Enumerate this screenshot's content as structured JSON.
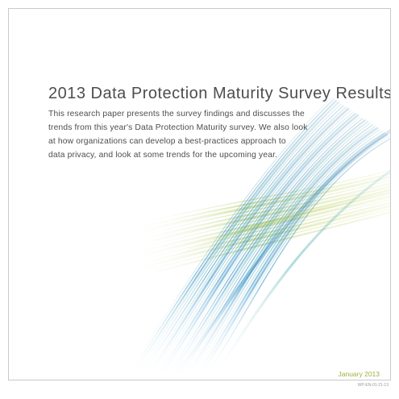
{
  "document": {
    "title": "2013 Data Protection Maturity Survey Results",
    "intro_lines": [
      "This research paper presents the survey findings and discusses the",
      "trends from this year's Data Protection Maturity survey. We also look",
      "at how organizations can develop a best-practices approach to",
      "data privacy, and look at some trends for the upcoming year."
    ],
    "date": "January 2013",
    "doc_code": "WP-EN-01-21-13"
  },
  "colors": {
    "text": "#4d4d4d",
    "accent_green": "#9bb23a",
    "accent_blue": "#1f7fb5",
    "accent_teal": "#3aa0a0"
  },
  "icons": [
    "ribbon-artwork"
  ]
}
